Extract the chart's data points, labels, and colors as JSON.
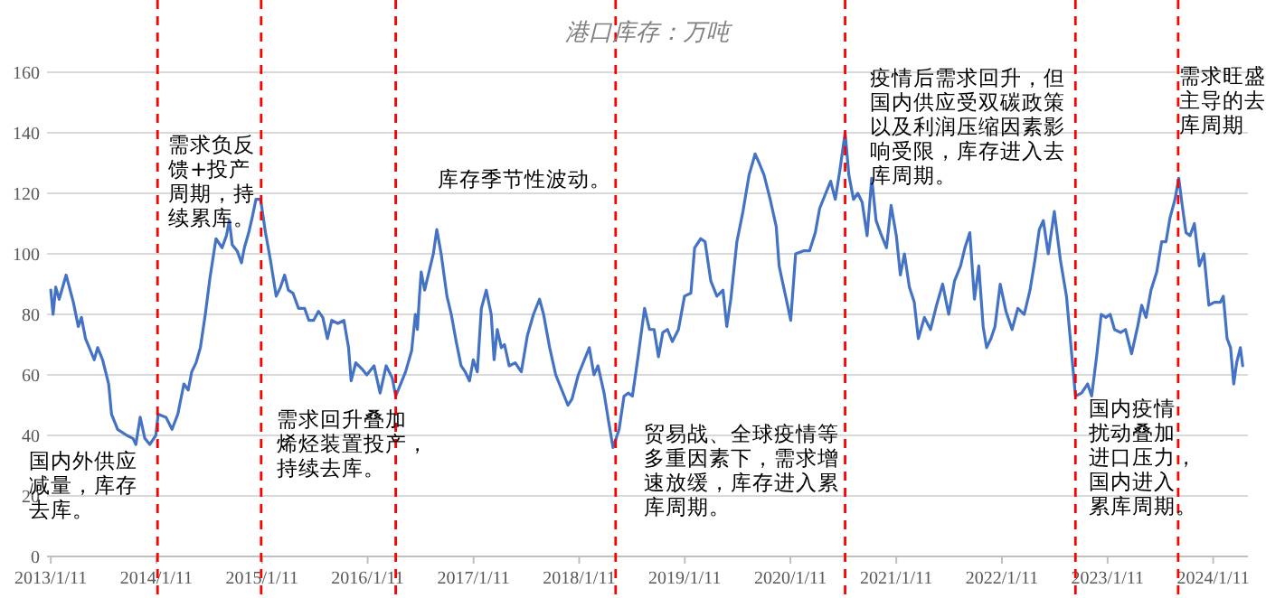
{
  "chart_data": {
    "type": "line",
    "title": "港口库存：万吨",
    "x": [
      "2013-01-11",
      "2013-01-19",
      "2013-01-28",
      "2013-02-09",
      "2013-03-05",
      "2013-03-30",
      "2013-04-16",
      "2013-04-27",
      "2013-05-11",
      "2013-05-24",
      "2013-06-10",
      "2013-06-22",
      "2013-07-09",
      "2013-07-30",
      "2013-08-09",
      "2013-08-30",
      "2013-10-01",
      "2013-10-22",
      "2013-11-01",
      "2013-11-16",
      "2013-12-02",
      "2013-12-19",
      "2014-01-09",
      "2014-01-17",
      "2014-02-13",
      "2014-03-06",
      "2014-03-26",
      "2014-04-16",
      "2014-05-01",
      "2014-05-13",
      "2014-05-28",
      "2014-06-12",
      "2014-06-29",
      "2014-07-15",
      "2014-08-05",
      "2014-08-26",
      "2014-09-10",
      "2014-09-20",
      "2014-09-30",
      "2014-10-17",
      "2014-11-01",
      "2014-11-11",
      "2014-11-26",
      "2014-12-08",
      "2014-12-21",
      "2015-01-06",
      "2015-01-23",
      "2015-02-09",
      "2015-03-01",
      "2015-03-16",
      "2015-03-30",
      "2015-04-12",
      "2015-04-28",
      "2015-05-17",
      "2015-06-07",
      "2015-06-22",
      "2015-07-08",
      "2015-07-25",
      "2015-08-09",
      "2015-08-25",
      "2015-09-09",
      "2015-09-30",
      "2015-10-21",
      "2015-11-06",
      "2015-11-15",
      "2015-12-01",
      "2015-12-22",
      "2016-01-08",
      "2016-02-02",
      "2016-02-23",
      "2016-03-15",
      "2016-04-05",
      "2016-04-17",
      "2016-05-04",
      "2016-05-21",
      "2016-06-11",
      "2016-06-24",
      "2016-07-01",
      "2016-07-08",
      "2016-07-14",
      "2016-07-26",
      "2016-08-10",
      "2016-08-25",
      "2016-09-06",
      "2016-09-21",
      "2016-10-11",
      "2016-10-26",
      "2016-11-12",
      "2016-11-29",
      "2016-12-13",
      "2016-12-28",
      "2017-01-10",
      "2017-01-24",
      "2017-02-07",
      "2017-02-24",
      "2017-03-13",
      "2017-03-23",
      "2017-04-03",
      "2017-04-17",
      "2017-04-28",
      "2017-05-14",
      "2017-06-04",
      "2017-06-25",
      "2017-07-16",
      "2017-08-06",
      "2017-08-27",
      "2017-09-10",
      "2017-10-01",
      "2017-10-22",
      "2017-11-12",
      "2017-12-03",
      "2017-12-17",
      "2018-01-08",
      "2018-01-29",
      "2018-02-15",
      "2018-03-03",
      "2018-03-17",
      "2018-04-07",
      "2018-04-22",
      "2018-05-08",
      "2018-05-29",
      "2018-06-15",
      "2018-06-30",
      "2018-07-14",
      "2018-08-04",
      "2018-08-25",
      "2018-09-11",
      "2018-09-27",
      "2018-10-12",
      "2018-10-27",
      "2018-11-12",
      "2018-11-29",
      "2018-12-20",
      "2019-01-10",
      "2019-02-01",
      "2019-02-14",
      "2019-03-07",
      "2019-03-22",
      "2019-04-11",
      "2019-05-02",
      "2019-05-23",
      "2019-06-05",
      "2019-06-19",
      "2019-07-10",
      "2019-07-31",
      "2019-08-21",
      "2019-09-11",
      "2019-09-25",
      "2019-10-12",
      "2019-11-02",
      "2019-11-23",
      "2019-12-03",
      "2019-12-14",
      "2019-12-30",
      "2020-01-12",
      "2020-01-29",
      "2020-02-25",
      "2020-03-17",
      "2020-04-06",
      "2020-04-21",
      "2020-05-12",
      "2020-05-29",
      "2020-06-14",
      "2020-06-29",
      "2020-07-18",
      "2020-07-31",
      "2020-08-16",
      "2020-08-31",
      "2020-09-15",
      "2020-10-02",
      "2020-10-18",
      "2020-11-02",
      "2020-11-17",
      "2020-12-08",
      "2020-12-24",
      "2021-01-11",
      "2021-01-25",
      "2021-02-08",
      "2021-02-25",
      "2021-03-14",
      "2021-03-28",
      "2021-04-18",
      "2021-05-09",
      "2021-05-30",
      "2021-06-20",
      "2021-07-11",
      "2021-07-31",
      "2021-08-21",
      "2021-09-05",
      "2021-09-22",
      "2021-10-08",
      "2021-10-23",
      "2021-11-07",
      "2021-11-19",
      "2021-12-04",
      "2021-12-18",
      "2022-01-05",
      "2022-01-25",
      "2022-02-15",
      "2022-03-07",
      "2022-03-29",
      "2022-04-18",
      "2022-05-05",
      "2022-05-20",
      "2022-06-03",
      "2022-06-20",
      "2022-07-11",
      "2022-08-01",
      "2022-08-22",
      "2022-09-07",
      "2022-09-22",
      "2022-10-13",
      "2022-11-03",
      "2022-11-17",
      "2022-12-04",
      "2022-12-20",
      "2023-01-05",
      "2023-01-20",
      "2023-02-04",
      "2023-02-25",
      "2023-03-14",
      "2023-04-04",
      "2023-04-25",
      "2023-05-09",
      "2023-05-24",
      "2023-06-10",
      "2023-06-30",
      "2023-07-17",
      "2023-08-01",
      "2023-08-15",
      "2023-09-01",
      "2023-09-14",
      "2023-09-26",
      "2023-10-09",
      "2023-10-23",
      "2023-11-07",
      "2023-11-24",
      "2023-12-10",
      "2023-12-27",
      "2024-01-15",
      "2024-02-05",
      "2024-02-15",
      "2024-02-28",
      "2024-03-11",
      "2024-03-22",
      "2024-04-01",
      "2024-04-14",
      "2024-04-22"
    ],
    "series": [
      {
        "color": "#4472c4",
        "values": [
          88,
          80,
          89,
          85,
          93,
          84,
          76,
          79,
          72,
          69,
          65,
          69,
          65,
          57,
          47,
          42,
          40,
          39,
          37,
          46,
          39,
          37,
          40,
          47,
          46,
          42,
          47,
          57,
          55,
          61,
          64,
          69,
          80,
          92,
          105,
          102,
          106,
          111,
          103,
          101,
          97,
          102,
          107,
          112,
          118,
          118,
          107,
          98,
          86,
          89,
          93,
          88,
          87,
          82,
          82,
          78,
          78,
          81,
          79,
          72,
          78,
          77,
          78,
          69,
          58,
          64,
          62,
          60,
          63,
          54,
          63,
          59,
          53,
          57,
          61,
          68,
          80,
          75,
          86,
          94,
          88,
          94,
          100,
          108,
          100,
          86,
          80,
          71,
          63,
          61,
          58,
          65,
          61,
          82,
          88,
          80,
          65,
          75,
          69,
          70,
          63,
          64,
          61,
          73,
          80,
          85,
          80,
          69,
          60,
          55,
          50,
          52,
          60,
          65,
          69,
          60,
          63,
          54,
          45,
          36,
          42,
          53,
          54,
          53,
          67,
          82,
          75,
          75,
          66,
          74,
          75,
          71,
          75,
          86,
          87,
          102,
          105,
          104,
          91,
          86,
          88,
          76,
          85,
          104,
          114,
          126,
          133,
          130,
          126,
          118,
          109,
          96,
          91,
          84,
          78,
          100,
          101,
          101,
          107,
          115,
          120,
          124,
          118,
          127,
          140,
          126,
          118,
          120,
          117,
          106,
          125,
          111,
          107,
          102,
          116,
          106,
          93,
          100,
          89,
          84,
          72,
          79,
          75,
          83,
          90,
          80,
          91,
          96,
          102,
          107,
          85,
          96,
          76,
          69,
          72,
          76,
          90,
          81,
          75,
          82,
          80,
          88,
          98,
          108,
          111,
          100,
          114,
          98,
          86,
          69,
          53,
          54,
          57,
          53,
          66,
          80,
          79,
          80,
          75,
          74,
          75,
          67,
          76,
          83,
          79,
          88,
          94,
          104,
          104,
          112,
          118,
          125,
          116,
          107,
          106,
          110,
          96,
          100,
          83,
          84,
          84,
          86,
          72,
          69,
          57,
          64,
          69,
          63
        ]
      }
    ],
    "xlim": [
      "2012-12-29",
      "2024-05-10"
    ],
    "xticks": [
      {
        "value": "2013-01-11",
        "label": "2013/1/11"
      },
      {
        "value": "2014-01-11",
        "label": "2014/1/11"
      },
      {
        "value": "2015-01-11",
        "label": "2015/1/11"
      },
      {
        "value": "2016-01-11",
        "label": "2016/1/11"
      },
      {
        "value": "2017-01-11",
        "label": "2017/1/11"
      },
      {
        "value": "2018-01-11",
        "label": "2018/1/11"
      },
      {
        "value": "2019-01-11",
        "label": "2019/1/11"
      },
      {
        "value": "2020-01-11",
        "label": "2020/1/11"
      },
      {
        "value": "2021-01-11",
        "label": "2021/1/11"
      },
      {
        "value": "2022-01-11",
        "label": "2022/1/11"
      },
      {
        "value": "2023-01-11",
        "label": "2023/1/11"
      },
      {
        "value": "2024-01-11",
        "label": "2024/1/11"
      }
    ],
    "ylim": [
      0,
      160
    ],
    "yticks": [
      0,
      20,
      40,
      60,
      80,
      100,
      120,
      140,
      160
    ],
    "grid": "y",
    "ref_lines": [
      {
        "axis": "x",
        "value": "2014-01-15",
        "color": "#ff0000",
        "line_style": "dashed"
      },
      {
        "axis": "x",
        "value": "2015-01-08",
        "color": "#ff0000",
        "line_style": "dashed"
      },
      {
        "axis": "x",
        "value": "2016-04-17",
        "color": "#ff0000",
        "line_style": "dashed"
      },
      {
        "axis": "x",
        "value": "2018-05-17",
        "color": "#ff0000",
        "line_style": "dashed"
      },
      {
        "axis": "x",
        "value": "2020-07-18",
        "color": "#ff0000",
        "line_style": "dashed"
      },
      {
        "axis": "x",
        "value": "2022-09-22",
        "color": "#ff0000",
        "line_style": "dashed"
      },
      {
        "axis": "x",
        "value": "2023-09-12",
        "color": "#ff0000",
        "line_style": "dashed"
      }
    ],
    "annotations": [
      "国内外供应减量，库存去库。",
      "需求负反馈+投产周期，持续累库。",
      "需求回升叠加烯烃装置投产，持续去库。",
      "库存季节性波动。",
      "贸易战、全球疫情等多重因素下，需求增速放缓，库存进入累库周期。",
      "疫情后需求回升，但国内供应受双碳政策以及利润压缩因素影响受限，库存进入去库周期。",
      "国内疫情扰动叠加进口压力，国内进入累库周期。",
      "需求旺盛主导的去库周期"
    ]
  }
}
